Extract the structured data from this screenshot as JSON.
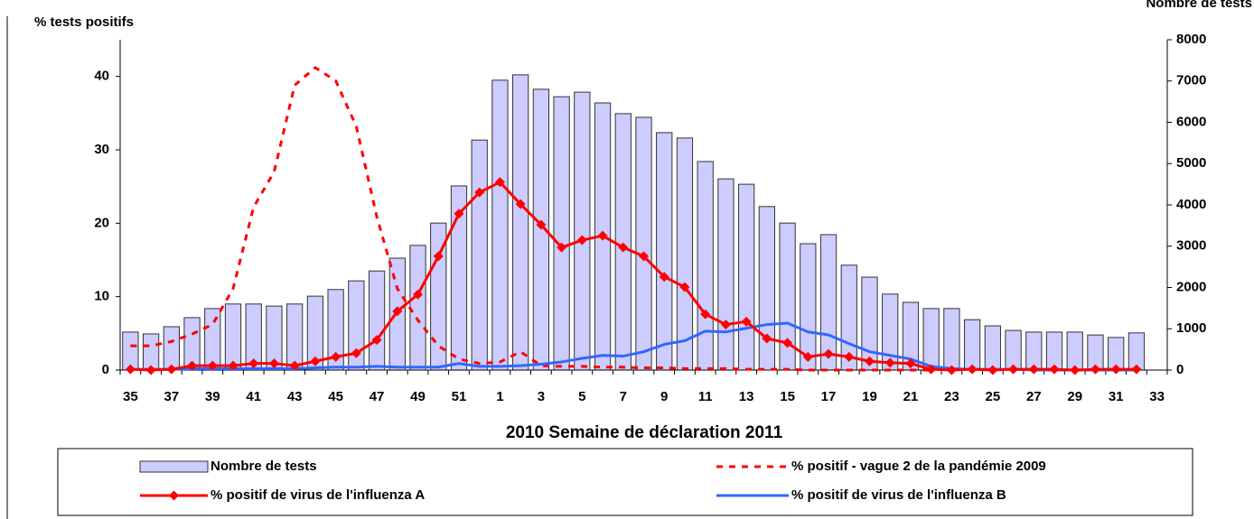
{
  "chart_data": {
    "type": "bar",
    "y_label": "% tests positifs",
    "y2_label": "Nombre de tests",
    "x_label": "2010  Semaine de déclaration   2011",
    "categories": [
      "35",
      null,
      "37",
      null,
      "39",
      null,
      "41",
      null,
      "43",
      null,
      "45",
      null,
      "47",
      null,
      "49",
      null,
      "51",
      null,
      "1",
      null,
      "3",
      null,
      "5",
      null,
      "7",
      null,
      "9",
      null,
      "11",
      null,
      "13",
      null,
      "15",
      null,
      "17",
      null,
      "19",
      null,
      "21",
      null,
      "23",
      null,
      "25",
      null,
      "27",
      null,
      "29",
      null,
      "31",
      null,
      "33"
    ],
    "ylim": [
      0,
      45
    ],
    "yticks": [
      0,
      10,
      20,
      30,
      40
    ],
    "y2lim": [
      0,
      8000
    ],
    "y2ticks": [
      0,
      1000,
      2000,
      3000,
      4000,
      5000,
      6000,
      7000,
      8000
    ],
    "grid": false,
    "legend": "bottom",
    "series": [
      {
        "name": "Nombre de tests",
        "type": "bar",
        "axis": "y2",
        "color": "#ccccff",
        "values": [
          920,
          875,
          1050,
          1270,
          1490,
          1600,
          1600,
          1550,
          1600,
          1790,
          1950,
          2160,
          2400,
          2710,
          3020,
          3560,
          4460,
          5570,
          7020,
          7150,
          6800,
          6620,
          6730,
          6470,
          6210,
          6120,
          5750,
          5620,
          5050,
          4630,
          4500,
          3960,
          3560,
          3060,
          3280,
          2540,
          2250,
          1840,
          1640,
          1490,
          1490,
          1220,
          1070,
          960,
          920,
          920,
          920,
          850,
          790,
          900,
          null
        ]
      },
      {
        "name": "% positif - vague 2 de la pandémie 2009",
        "type": "line",
        "dashed": true,
        "color": "#ff0000",
        "values": [
          3.3,
          3.3,
          3.9,
          4.9,
          6.2,
          11.1,
          22.2,
          27,
          38.8,
          41.2,
          39.4,
          33.2,
          20.9,
          11.1,
          6.8,
          3.3,
          1.5,
          0.9,
          1.1,
          2.5,
          0.6,
          0.5,
          0.5,
          0.4,
          0.4,
          0.3,
          0.3,
          0.2,
          0.2,
          0.2,
          0.1,
          0.1,
          0.1,
          0,
          0,
          0,
          0,
          0,
          0,
          0,
          null,
          null,
          null,
          null,
          null,
          null,
          null,
          null,
          null,
          null,
          null
        ]
      },
      {
        "name": "% positif de virus de l'influenza A",
        "type": "line",
        "marker": "diamond",
        "color": "#ff0000",
        "values": [
          0.1,
          0,
          0.1,
          0.6,
          0.6,
          0.6,
          0.9,
          0.9,
          0.6,
          1.2,
          1.8,
          2.3,
          4.1,
          8,
          10.3,
          15.5,
          21.3,
          24.2,
          25.6,
          22.6,
          19.8,
          16.7,
          17.7,
          18.3,
          16.7,
          15.5,
          12.7,
          11.3,
          7.6,
          6.2,
          6.6,
          4.3,
          3.7,
          1.8,
          2.2,
          1.8,
          1.2,
          1.0,
          0.9,
          0.1,
          0,
          0.1,
          0,
          0.1,
          0.1,
          0.1,
          0,
          0.1,
          0.1,
          0.1,
          null
        ]
      },
      {
        "name": "% positif de virus de l'influenza B",
        "type": "line",
        "color": "#3366ff",
        "values": [
          0.1,
          0.1,
          0.1,
          0.2,
          0.2,
          0.2,
          0.2,
          0.2,
          0.2,
          0.3,
          0.4,
          0.4,
          0.5,
          0.4,
          0.4,
          0.4,
          0.9,
          0.5,
          0.5,
          0.6,
          0.8,
          1.1,
          1.6,
          2,
          1.9,
          2.5,
          3.5,
          4,
          5.3,
          5.2,
          5.7,
          6.2,
          6.4,
          5.2,
          4.8,
          3.6,
          2.5,
          2,
          1.5,
          0.5,
          0.2,
          0.1,
          0.1,
          0.1,
          0,
          0,
          0,
          0,
          0,
          0,
          null
        ]
      }
    ]
  }
}
